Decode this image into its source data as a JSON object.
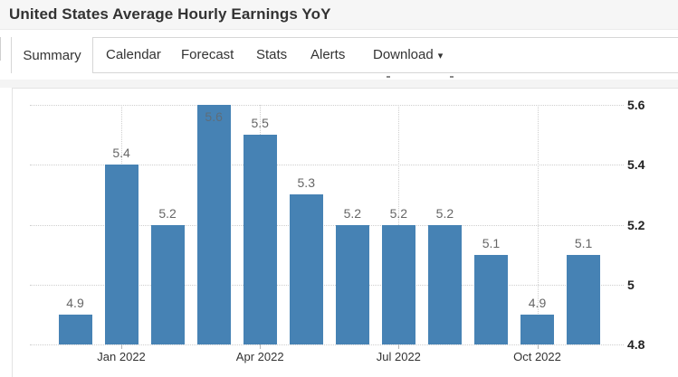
{
  "header": {
    "title": "United States Average Hourly Earnings YoY"
  },
  "tabs": {
    "items": [
      {
        "label": "Summary",
        "active": true
      },
      {
        "label": "Calendar"
      },
      {
        "label": "Forecast"
      },
      {
        "label": "Stats"
      },
      {
        "label": "Alerts"
      },
      {
        "label": "Download",
        "has_dropdown": true
      }
    ],
    "dropdown_caret": "▾"
  },
  "chart_data": {
    "type": "bar",
    "title": "United States Average Hourly Earnings YoY",
    "values": [
      4.9,
      5.4,
      5.2,
      5.6,
      5.5,
      5.3,
      5.2,
      5.2,
      5.2,
      5.1,
      4.9,
      5.1
    ],
    "data_labels": [
      "4.9",
      "5.4",
      "5.2",
      "5.6",
      "5.5",
      "5.3",
      "5.2",
      "5.2",
      "5.2",
      "5.1",
      "4.9",
      "5.1"
    ],
    "x_tick_labels": [
      "Jan 2022",
      "Apr 2022",
      "Jul 2022",
      "Oct 2022"
    ],
    "x_tick_bar_indices": [
      1,
      4,
      7,
      10
    ],
    "y_ticks": [
      4.8,
      5,
      5.2,
      5.4,
      5.6
    ],
    "y_tick_labels": [
      "4.8",
      "5",
      "5.2",
      "5.4",
      "5.6"
    ],
    "ylim": [
      4.8,
      5.65
    ],
    "y_axis_side": "right",
    "grid": "dotted",
    "legend": "none",
    "bar_color": "#4682b4",
    "data_label_color": "#666666",
    "axis_tick_color": "#222222"
  }
}
